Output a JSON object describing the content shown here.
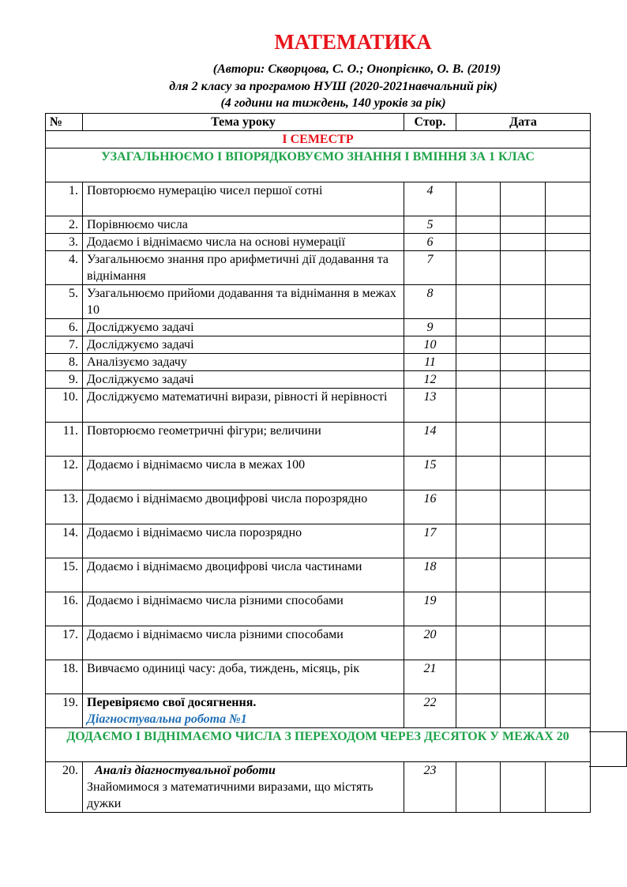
{
  "title": "МАТЕМАТИКА",
  "subtitle_lines": [
    "(Автори: Скворцова, С. О.; Онопрієнко, О. В. (2019)",
    "для 2 класу за програмою НУШ (2020-2021навчальний рік)",
    "(4 години на тиждень, 140 уроків за рік)"
  ],
  "table": {
    "headers": {
      "num": "№",
      "topic": "Тема уроку",
      "page": "Стор.",
      "date": "Дата"
    },
    "semester": "І СЕМЕСТР",
    "section1": "УЗАГАЛЬНЮЄМО І ВПОРЯДКОВУЄМО ЗНАННЯ І ВМІННЯ ЗА 1 КЛАС",
    "section2": "ДОДАЄМО І ВІДНІМАЄМО ЧИСЛА З ПЕРЕХОДОМ ЧЕРЕЗ ДЕСЯТОК У МЕЖАХ 20",
    "rows": [
      {
        "num": "1.",
        "page": "4",
        "parts": [
          {
            "text": "Повторюємо нумерацію чисел першої сотні"
          }
        ]
      },
      {
        "num": "2.",
        "page": "5",
        "parts": [
          {
            "text": "Порівнюємо числа"
          }
        ]
      },
      {
        "num": "3.",
        "page": "6",
        "parts": [
          {
            "text": "Додаємо і віднімаємо числа на основі нумерації"
          }
        ]
      },
      {
        "num": "4.",
        "page": "7",
        "parts": [
          {
            "text": "Узагальнюємо знання про арифметичні дії додавання та віднімання"
          }
        ]
      },
      {
        "num": "5.",
        "page": "8",
        "parts": [
          {
            "text": "Узагальнюємо прийоми додавання та віднімання в межах 10"
          }
        ]
      },
      {
        "num": "6.",
        "page": "9",
        "parts": [
          {
            "text": "Досліджуємо задачі"
          }
        ]
      },
      {
        "num": "7.",
        "page": "10",
        "parts": [
          {
            "text": "Досліджуємо задачі"
          }
        ]
      },
      {
        "num": "8.",
        "page": "11",
        "parts": [
          {
            "text": "Аналізуємо задачу"
          }
        ]
      },
      {
        "num": "9.",
        "page": "12",
        "parts": [
          {
            "text": "Досліджуємо задачі"
          }
        ]
      },
      {
        "num": "10.",
        "page": "13",
        "parts": [
          {
            "text": "Досліджуємо математичні вирази, рівності й нерівності"
          }
        ]
      },
      {
        "num": "11.",
        "page": "14",
        "parts": [
          {
            "text": "Повторюємо геометричні фігури; величини"
          }
        ]
      },
      {
        "num": "12.",
        "page": "15",
        "parts": [
          {
            "text": "Додаємо і віднімаємо числа в межах 100"
          }
        ]
      },
      {
        "num": "13.",
        "page": "16",
        "parts": [
          {
            "text": "Додаємо і віднімаємо двоцифрові числа порозрядно"
          }
        ]
      },
      {
        "num": "14.",
        "page": "17",
        "parts": [
          {
            "text": "Додаємо і віднімаємо числа порозрядно"
          }
        ]
      },
      {
        "num": "15.",
        "page": "18",
        "parts": [
          {
            "text": "Додаємо і віднімаємо двоцифрові числа частинами"
          }
        ]
      },
      {
        "num": "16.",
        "page": "19",
        "parts": [
          {
            "text": "Додаємо і віднімаємо числа різними способами"
          }
        ]
      },
      {
        "num": "17.",
        "page": "20",
        "parts": [
          {
            "text": "Додаємо і віднімаємо числа різними способами"
          }
        ]
      },
      {
        "num": "18.",
        "page": "21",
        "parts": [
          {
            "text": "Вивчаємо одиниці часу: доба, тиждень, місяць, рік"
          }
        ]
      },
      {
        "num": "19.",
        "page": "22",
        "parts": [
          {
            "text": "Перевіряємо свої досягнення.",
            "style": "bold"
          },
          {
            "text": "Діагностувальна робота №1",
            "style": "diag"
          }
        ]
      }
    ],
    "after_rows": [
      {
        "num": "20.",
        "page": "23",
        "parts": [
          {
            "text": "Аналіз діагностувальної роботи",
            "style": "italic"
          },
          {
            "text": "Знайомимося з математичними виразами, що містять дужки"
          }
        ]
      }
    ]
  }
}
